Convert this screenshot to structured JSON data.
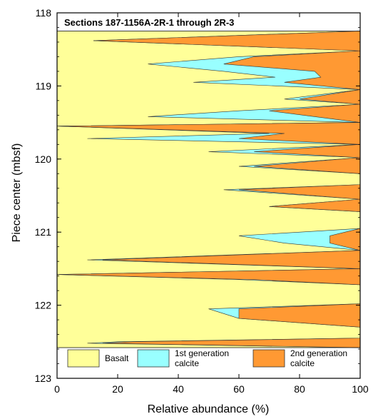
{
  "chart_data": {
    "type": "area",
    "title": "Sections 187-1156A-2R-1 through 2R-3",
    "xlabel": "Relative abundance (%)",
    "ylabel": "Piece center (mbsf)",
    "xlim": [
      0,
      100
    ],
    "ylim": [
      123,
      118
    ],
    "y_inverted": true,
    "x_ticks": [
      0,
      20,
      40,
      60,
      80,
      100
    ],
    "y_ticks": [
      118,
      119,
      120,
      121,
      122,
      123
    ],
    "grid": false,
    "legend_position": "bottom",
    "depth": [
      118.25,
      118.38,
      118.52,
      118.6,
      118.7,
      118.8,
      118.88,
      118.95,
      119.05,
      119.18,
      119.25,
      119.34,
      119.42,
      119.5,
      119.55,
      119.65,
      119.72,
      119.8,
      119.9,
      119.98,
      120.1,
      120.2,
      120.35,
      120.42,
      120.55,
      120.65,
      120.72,
      120.82,
      120.95,
      121.05,
      121.15,
      121.25,
      121.38,
      121.5,
      121.58,
      121.65,
      121.72,
      121.8,
      121.9,
      121.98,
      122.05,
      122.18,
      122.3,
      122.45,
      122.5,
      122.52,
      122.58
    ],
    "series": [
      {
        "name": "Basalt",
        "color": "#ffff99",
        "values": [
          100,
          12,
          100,
          60,
          30,
          55,
          72,
          45,
          100,
          75,
          100,
          60,
          30,
          100,
          0,
          70,
          10,
          100,
          50,
          100,
          60,
          100,
          100,
          55,
          100,
          70,
          100,
          100,
          100,
          60,
          75,
          100,
          10,
          100,
          0,
          60,
          100,
          100,
          100,
          100,
          50,
          60,
          100,
          100,
          20,
          10,
          100
        ]
      },
      {
        "name": "1st generation calcite",
        "color": "#99ffff",
        "values": [
          0,
          0,
          0,
          5,
          25,
          30,
          15,
          30,
          0,
          5,
          0,
          10,
          55,
          0,
          0,
          5,
          50,
          0,
          15,
          0,
          5,
          0,
          0,
          5,
          0,
          0,
          0,
          0,
          0,
          30,
          15,
          0,
          5,
          0,
          0,
          5,
          0,
          0,
          0,
          0,
          10,
          0,
          0,
          0,
          5,
          5,
          0
        ]
      },
      {
        "name": "2nd generation calcite",
        "color": "#ff9933",
        "values": [
          0,
          88,
          0,
          35,
          45,
          15,
          13,
          25,
          0,
          20,
          0,
          30,
          15,
          0,
          100,
          25,
          40,
          0,
          35,
          0,
          35,
          0,
          0,
          40,
          0,
          30,
          0,
          0,
          0,
          10,
          10,
          0,
          85,
          0,
          100,
          35,
          0,
          0,
          0,
          0,
          40,
          40,
          0,
          0,
          75,
          85,
          0
        ]
      }
    ],
    "legend": [
      {
        "label": "Basalt",
        "color": "#ffff99"
      },
      {
        "label": "1st generation\ncalcite",
        "color": "#99ffff"
      },
      {
        "label": "2nd generation\ncalcite",
        "color": "#ff9933"
      }
    ]
  }
}
